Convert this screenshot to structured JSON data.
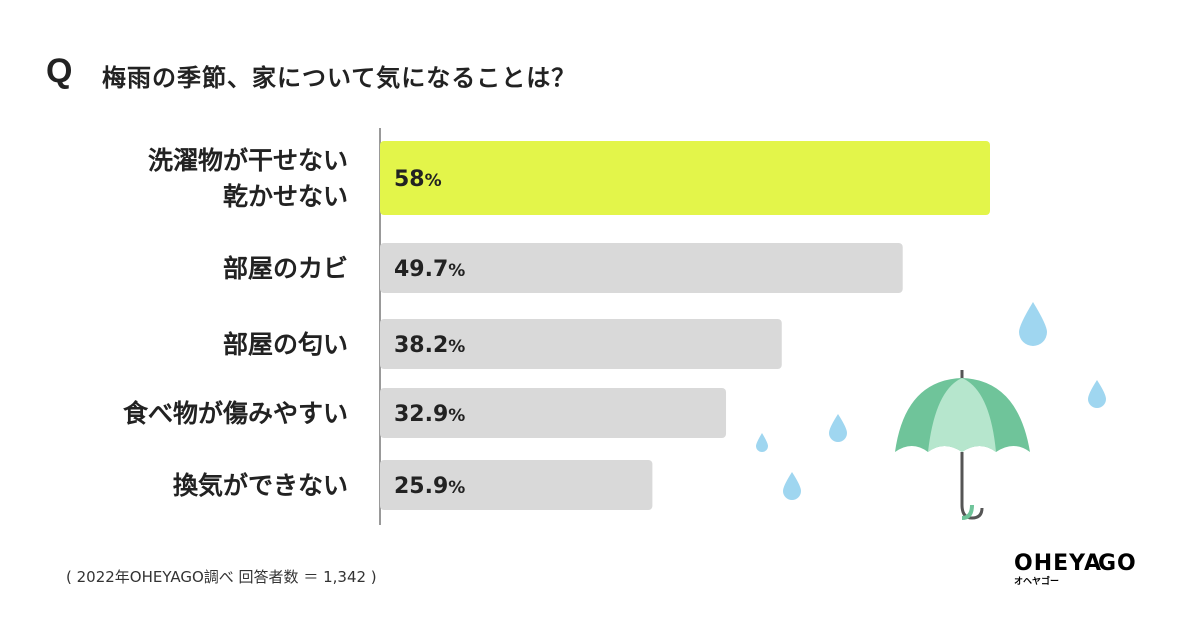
{
  "question_mark": "Q",
  "title": "梅雨の季節、家について気になることは？",
  "footnote": "( 2022年OHEYAGO調べ 回答者数 ＝ 1,342 )",
  "logo": {
    "main_left": "OHEYA",
    "main_right": "GO",
    "sub": "オヘヤゴー"
  },
  "colors": {
    "highlight": "#e3f54a",
    "bar": "#d9d9d9",
    "axis": "#999999",
    "umbrella_dark": "#6fc49a",
    "umbrella_light": "#b6e6cd",
    "drop": "#9fd6f0"
  },
  "chart_data": {
    "type": "bar",
    "orientation": "horizontal",
    "categories": [
      [
        "洗濯物が干せない",
        "乾かせない"
      ],
      [
        "部屋のカビ"
      ],
      [
        "部屋の匂い"
      ],
      [
        "食べ物が傷みやすい"
      ],
      [
        "換気ができない"
      ]
    ],
    "values": [
      58,
      49.7,
      38.2,
      32.9,
      25.9
    ],
    "value_labels": [
      "58",
      "49.7",
      "38.2",
      "32.9",
      "25.9"
    ],
    "unit": "%",
    "highlight_index": 0,
    "xlim": [
      0,
      58
    ]
  }
}
